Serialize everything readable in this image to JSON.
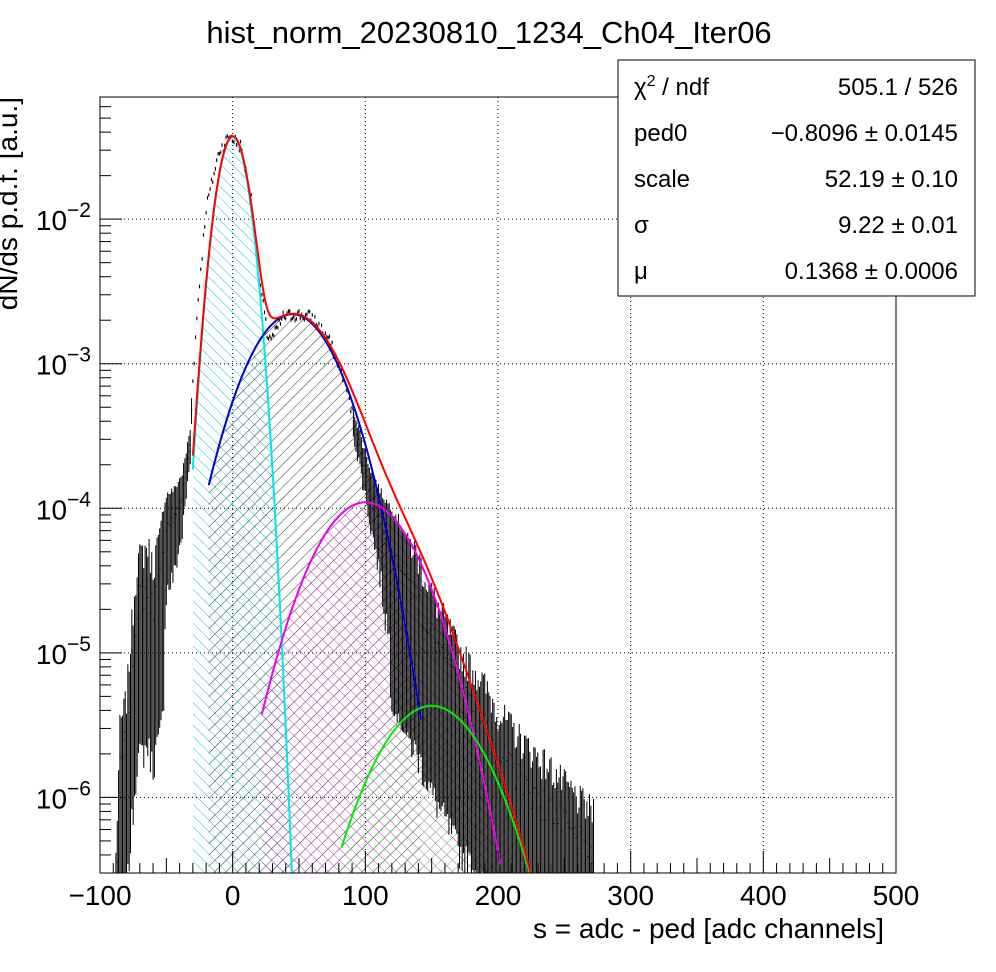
{
  "chart_data": {
    "type": "histogram",
    "title": "hist_norm_20230810_1234_Ch04_Iter06",
    "xlabel": "s = adc - ped [adc channels]",
    "ylabel": "dN/ds p.d.f. [a.u.]",
    "xlim": [
      -100,
      500
    ],
    "ylim": [
      3e-07,
      0.07
    ],
    "yscale": "log",
    "grid": true,
    "x_ticks": [
      {
        "value": -100,
        "label": "−100"
      },
      {
        "value": 0,
        "label": "0"
      },
      {
        "value": 100,
        "label": "100"
      },
      {
        "value": 200,
        "label": "200"
      },
      {
        "value": 300,
        "label": "300"
      },
      {
        "value": 400,
        "label": "400"
      },
      {
        "value": 500,
        "label": "500"
      }
    ],
    "y_ticks": [
      {
        "value": 0.01,
        "mant": "10",
        "exp": "−2"
      },
      {
        "value": 0.001,
        "mant": "10",
        "exp": "−3"
      },
      {
        "value": 0.0001,
        "mant": "10",
        "exp": "−4"
      },
      {
        "value": 1e-05,
        "mant": "10",
        "exp": "−5"
      },
      {
        "value": 1e-06,
        "mant": "10",
        "exp": "−6"
      }
    ],
    "stats_box": {
      "rows": [
        {
          "name": "χ",
          "sup": "2",
          "rest": " / ndf",
          "value": "505.1 / 526"
        },
        {
          "name": "ped0",
          "sup": "",
          "rest": "",
          "value": "−0.8096 ± 0.0145"
        },
        {
          "name": "scale",
          "sup": "",
          "rest": "",
          "value": "52.19 ± 0.10"
        },
        {
          "name": "σ",
          "sup": "",
          "rest": "",
          "value": "9.22 ± 0.01"
        },
        {
          "name": "μ",
          "sup": "",
          "rest": "",
          "value": "0.1368 ± 0.0006"
        }
      ]
    },
    "series": [
      {
        "role": "data",
        "color": "#000000",
        "x_range": [
          -88,
          272
        ],
        "anchors": [
          [
            -88,
            2e-07
          ],
          [
            -85,
            1.5e-06
          ],
          [
            -80,
            2.5e-06
          ],
          [
            -76,
            8e-06
          ],
          [
            -72,
            2.2e-05
          ],
          [
            -64,
            2.8e-05
          ],
          [
            -60,
            2e-05
          ],
          [
            -54,
            4e-05
          ],
          [
            -50,
            7.5e-05
          ],
          [
            -44,
            8.5e-05
          ],
          [
            -38,
            0.00012
          ],
          [
            -32,
            0.00028
          ],
          [
            -30,
            0.0008
          ],
          [
            -26,
            0.0028
          ],
          [
            -20,
            0.012
          ],
          [
            -10,
            0.03
          ],
          [
            -2,
            0.038
          ],
          [
            6,
            0.032
          ],
          [
            14,
            0.014
          ],
          [
            20,
            0.004
          ],
          [
            26,
            0.0016
          ],
          [
            30,
            0.0015
          ],
          [
            38,
            0.0021
          ],
          [
            48,
            0.0022
          ],
          [
            60,
            0.0021
          ],
          [
            72,
            0.0015
          ],
          [
            84,
            0.0008
          ],
          [
            96,
            0.00026
          ],
          [
            104,
            0.00013
          ],
          [
            114,
            7e-05
          ],
          [
            128,
            3.8e-05
          ],
          [
            140,
            2.3e-05
          ],
          [
            150,
            1.3e-05
          ],
          [
            160,
            8.5e-06
          ],
          [
            172,
            5e-06
          ],
          [
            186,
            3.5e-06
          ],
          [
            200,
            2e-06
          ],
          [
            220,
            1.2e-06
          ],
          [
            240,
            8e-07
          ],
          [
            260,
            5e-07
          ],
          [
            272,
            4e-07
          ]
        ]
      },
      {
        "role": "total-fit",
        "color": "#ff0000",
        "x_range": [
          -30,
          243
        ]
      },
      {
        "role": "pedestal-peak",
        "color": "#00e5ee",
        "peak_x": 0,
        "peak_y": 0.037,
        "sigma": 9.22,
        "x_range": [
          -30,
          45
        ]
      },
      {
        "role": "1-pe-peak",
        "color": "#0000cc",
        "peak_x": 45,
        "peak_y": 0.0022,
        "sigma": 27,
        "x_range": [
          -18,
          142
        ]
      },
      {
        "role": "2-pe-peak",
        "color": "#ee00ee",
        "peak_x": 100,
        "peak_y": 0.00011,
        "sigma": 30,
        "x_range": [
          22,
          202
        ]
      },
      {
        "role": "3-pe-peak",
        "color": "#00ee00",
        "peak_x": 150,
        "peak_y": 4.3e-06,
        "sigma": 32,
        "x_range": [
          82,
          236
        ]
      }
    ]
  }
}
